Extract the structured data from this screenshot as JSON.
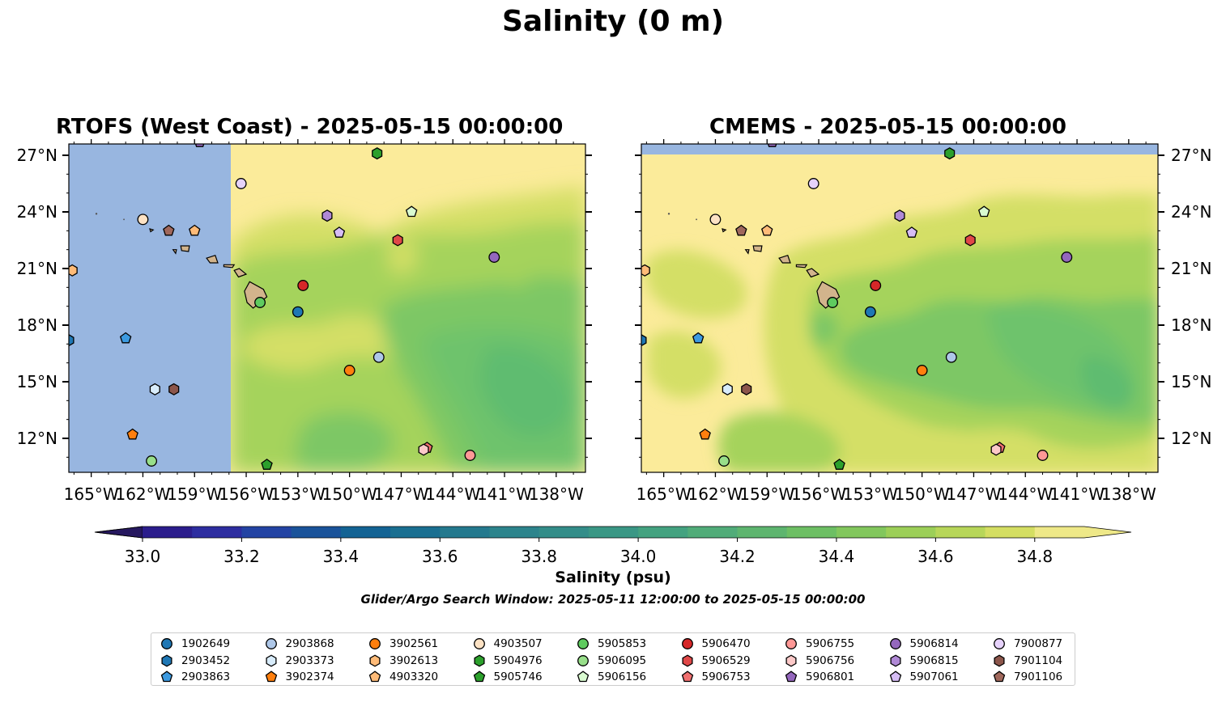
{
  "title": "Salinity (0 m)",
  "panels": [
    {
      "title": "RTOFS (West Coast) - 2025-05-15 00:00:00"
    },
    {
      "title": "CMEMS - 2025-05-15 00:00:00"
    }
  ],
  "colorbar": {
    "label": "Salinity (psu)",
    "ticks": [
      "33.0",
      "33.2",
      "33.4",
      "33.6",
      "33.8",
      "34.0",
      "34.2",
      "34.4",
      "34.6",
      "34.8"
    ],
    "colors": [
      "#26185f",
      "#2b1d8c",
      "#2d2da0",
      "#2343a3",
      "#1a539a",
      "#136394",
      "#1a6f91",
      "#24798e",
      "#2c848c",
      "#338d89",
      "#3a9785",
      "#44a280",
      "#51ac79",
      "#5eb56f",
      "#6dbf64",
      "#82c75d",
      "#9ccf58",
      "#b7d659",
      "#d4de62",
      "#eee888"
    ],
    "extend": "both"
  },
  "search_window": "Glider/Argo Search Window: 2025-05-11 12:00:00 to 2025-05-15 00:00:00",
  "chart_data": {
    "type": "map",
    "xlim": [
      -166.3,
      -136.3
    ],
    "ylim": [
      10.2,
      27.6
    ],
    "x_ticks": [
      "165°W",
      "162°W",
      "159°W",
      "156°W",
      "153°W",
      "150°W",
      "147°W",
      "144°W",
      "141°W",
      "138°W"
    ],
    "y_ticks": [
      "27°N",
      "24°N",
      "21°N",
      "18°N",
      "15°N",
      "12°N"
    ],
    "colors": {
      "land": "#d2b48c",
      "missing": "#98b6e0",
      "high_salinity": "#fbeb9a",
      "mid_salinity": "#a5d35b",
      "low_salinity": "#6ec36c"
    },
    "floats": [
      {
        "id": "1902649",
        "lon": -153.0,
        "lat": 18.7,
        "marker": "circle",
        "color": "#1f77b4"
      },
      {
        "id": "2903452",
        "lon": -166.3,
        "lat": 17.2,
        "marker": "hexagon",
        "color": "#1f77b4"
      },
      {
        "id": "2903863",
        "lon": -163.0,
        "lat": 17.3,
        "marker": "pentagon",
        "color": "#3c9ae0"
      },
      {
        "id": "2903868",
        "lon": -148.3,
        "lat": 16.3,
        "marker": "circle",
        "color": "#aec7e8"
      },
      {
        "id": "2903373",
        "lon": -161.3,
        "lat": 14.6,
        "marker": "hexagon",
        "color": "#d8ecfb"
      },
      {
        "id": "3902374",
        "lon": -162.6,
        "lat": 12.2,
        "marker": "pentagon",
        "color": "#ff7f0e"
      },
      {
        "id": "3902561",
        "lon": -150.0,
        "lat": 15.6,
        "marker": "circle",
        "color": "#ff7f0e"
      },
      {
        "id": "3902613",
        "lon": -166.1,
        "lat": 20.9,
        "marker": "hexagon",
        "color": "#ffbb78"
      },
      {
        "id": "4903320",
        "lon": -159.0,
        "lat": 23.0,
        "marker": "pentagon",
        "color": "#ffbb78"
      },
      {
        "id": "4903507",
        "lon": -162.0,
        "lat": 23.6,
        "marker": "circle",
        "color": "#fde2c4"
      },
      {
        "id": "5904976",
        "lon": -148.4,
        "lat": 27.1,
        "marker": "hexagon",
        "color": "#2ca02c"
      },
      {
        "id": "5905746",
        "lon": -154.8,
        "lat": 10.6,
        "marker": "pentagon",
        "color": "#2ca02c"
      },
      {
        "id": "5905853",
        "lon": -155.2,
        "lat": 19.2,
        "marker": "circle",
        "color": "#5fcb5f"
      },
      {
        "id": "5906095",
        "lon": -161.5,
        "lat": 10.8,
        "marker": "circle",
        "color": "#98df8a"
      },
      {
        "id": "5906156",
        "lon": -146.4,
        "lat": 24.0,
        "marker": "pentagon",
        "color": "#d9fbd0"
      },
      {
        "id": "5906470",
        "lon": -152.7,
        "lat": 20.1,
        "marker": "circle",
        "color": "#d62728"
      },
      {
        "id": "5906529",
        "lon": -147.2,
        "lat": 22.5,
        "marker": "hexagon",
        "color": "#e04848"
      },
      {
        "id": "5906753",
        "lon": -145.5,
        "lat": 11.5,
        "marker": "pentagon",
        "color": "#f07070"
      },
      {
        "id": "5906755",
        "lon": -143.0,
        "lat": 11.1,
        "marker": "circle",
        "color": "#ff9896"
      },
      {
        "id": "5906756",
        "lon": -145.7,
        "lat": 11.4,
        "marker": "hexagon",
        "color": "#fcc9c8"
      },
      {
        "id": "5906801",
        "lon": -158.7,
        "lat": 27.7,
        "marker": "pentagon",
        "color": "#9467bd"
      },
      {
        "id": "5906814",
        "lon": -141.6,
        "lat": 21.6,
        "marker": "circle",
        "color": "#9467bd"
      },
      {
        "id": "5906815",
        "lon": -151.3,
        "lat": 23.8,
        "marker": "hexagon",
        "color": "#b089d6"
      },
      {
        "id": "5907061",
        "lon": -150.6,
        "lat": 22.9,
        "marker": "pentagon",
        "color": "#d6bdf5"
      },
      {
        "id": "7900877",
        "lon": -156.3,
        "lat": 25.5,
        "marker": "circle",
        "color": "#e6d2fb"
      },
      {
        "id": "7901104",
        "lon": -160.2,
        "lat": 14.6,
        "marker": "hexagon",
        "color": "#8c564b"
      },
      {
        "id": "7901106",
        "lon": -160.5,
        "lat": 23.0,
        "marker": "pentagon",
        "color": "#a0685c"
      }
    ]
  }
}
